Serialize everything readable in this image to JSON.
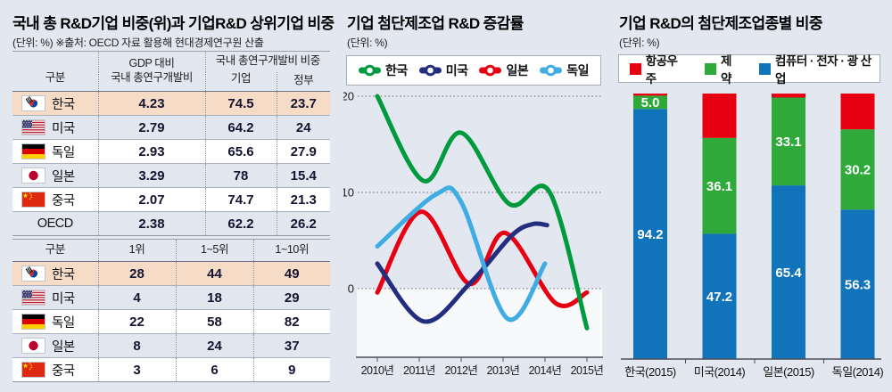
{
  "page": {
    "background": "#e3e7f0",
    "highlight_row_color": "#f6dcc7"
  },
  "panels": {
    "left": {
      "title": "국내 총 R&D기업 비중(위)과 기업R&D 상위기업 비중",
      "subtitle": "(단위: %) ※출처: OECD 자료 활용해 현대경제연구원 산출"
    },
    "middle": {
      "title": "기업 첨단제조업 R&D 증감률",
      "unit": "(단위: %)"
    },
    "right": {
      "title": "기업 R&D의 첨단제조업종별 비중",
      "unit": "(단위: %)"
    }
  },
  "tables": {
    "table1": {
      "header": {
        "col1": "구분",
        "col2": [
          "GDP 대비",
          "국내 총연구개발비"
        ],
        "group": "국내 총연구개발비 비중",
        "sub": [
          "기업",
          "정부"
        ]
      },
      "rows": [
        {
          "flag": "kr",
          "name": "한국",
          "values": [
            "4.23",
            "74.5",
            "23.7"
          ],
          "highlight": true
        },
        {
          "flag": "us",
          "name": "미국",
          "values": [
            "2.79",
            "64.2",
            "24"
          ],
          "highlight": false
        },
        {
          "flag": "de",
          "name": "독일",
          "values": [
            "2.93",
            "65.6",
            "27.9"
          ],
          "highlight": false
        },
        {
          "flag": "jp",
          "name": "일본",
          "values": [
            "3.29",
            "78",
            "15.4"
          ],
          "highlight": false
        },
        {
          "flag": "cn",
          "name": "중국",
          "values": [
            "2.07",
            "74.7",
            "21.3"
          ],
          "highlight": false
        },
        {
          "flag": null,
          "name": "OECD",
          "values": [
            "2.38",
            "62.2",
            "26.2"
          ],
          "highlight": false
        }
      ]
    },
    "table2": {
      "header": {
        "cols": [
          "구분",
          "1위",
          "1~5위",
          "1~10위"
        ]
      },
      "rows": [
        {
          "flag": "kr",
          "name": "한국",
          "values": [
            "28",
            "44",
            "49"
          ],
          "highlight": true
        },
        {
          "flag": "us",
          "name": "미국",
          "values": [
            "4",
            "18",
            "29"
          ],
          "highlight": false
        },
        {
          "flag": "de",
          "name": "독일",
          "values": [
            "22",
            "58",
            "82"
          ],
          "highlight": false
        },
        {
          "flag": "jp",
          "name": "일본",
          "values": [
            "8",
            "24",
            "37"
          ],
          "highlight": false
        },
        {
          "flag": "cn",
          "name": "중국",
          "values": [
            "3",
            "6",
            "9"
          ],
          "highlight": false
        }
      ]
    }
  },
  "chart_data": [
    {
      "id": "line-chart",
      "type": "line",
      "title": "기업 첨단제조업 R&D 증감률",
      "ylabel": "%",
      "x_ticks": [
        "2010년",
        "2011년",
        "2012년",
        "2013년",
        "2014년",
        "2015년"
      ],
      "x_range": [
        2010,
        2015
      ],
      "y_gridlines": [
        0,
        10,
        20
      ],
      "ylim": [
        -7,
        21
      ],
      "grid_style": "dotted",
      "legend_position": "top",
      "series": [
        {
          "name": "한국",
          "color": "#009a3e",
          "points": [
            [
              2010,
              20
            ],
            [
              2011.1,
              11.2
            ],
            [
              2012,
              16.2
            ],
            [
              2013.15,
              8.8
            ],
            [
              2014.1,
              10.1
            ],
            [
              2015,
              -4.1
            ]
          ]
        },
        {
          "name": "미국",
          "color": "#232e7f",
          "points": [
            [
              2010,
              2.6
            ],
            [
              2011.1,
              -3.4
            ],
            [
              2012.2,
              0.5
            ],
            [
              2013.2,
              5.5
            ],
            [
              2013.7,
              6.7
            ],
            [
              2014.05,
              6.6
            ]
          ]
        },
        {
          "name": "일본",
          "color": "#e60012",
          "points": [
            [
              2010,
              -0.4
            ],
            [
              2011.05,
              8.0
            ],
            [
              2012.2,
              0.5
            ],
            [
              2013.05,
              5.8
            ],
            [
              2014.25,
              -1.5
            ],
            [
              2015,
              -0.4
            ]
          ]
        },
        {
          "name": "독일",
          "color": "#3fade4",
          "points": [
            [
              2010,
              4.4
            ],
            [
              2011.4,
              9.8
            ],
            [
              2012,
              9.0
            ],
            [
              2013.1,
              -3.1
            ],
            [
              2014,
              2.6
            ]
          ]
        }
      ],
      "draw_order": [
        "일본",
        "미국",
        "독일",
        "한국"
      ]
    },
    {
      "id": "stacked-bar-chart",
      "type": "bar",
      "stacked": true,
      "title": "기업 R&D의 첨단제조업종별 비중",
      "ylabel": "%",
      "ylim": [
        0,
        100
      ],
      "categories": [
        "한국(2015)",
        "미국(2014)",
        "일본(2015)",
        "독일(2014)"
      ],
      "legend": [
        {
          "name": "항공우주",
          "color": "#e60012"
        },
        {
          "name": "제약",
          "color": "#2faa3a"
        },
        {
          "name": "컴퓨터 · 전자 · 광 산업",
          "color": "#1173b9"
        }
      ],
      "series": [
        {
          "name": "컴퓨터 · 전자 · 광 산업",
          "color": "#1173b9",
          "values": [
            94.2,
            47.2,
            65.4,
            56.3
          ],
          "labels": [
            "94.2",
            "47.2",
            "65.4",
            "56.3"
          ]
        },
        {
          "name": "제약",
          "color": "#2faa3a",
          "values": [
            5.0,
            36.1,
            33.1,
            30.2
          ],
          "labels": [
            "5.0",
            "36.1",
            "33.1",
            "30.2"
          ]
        },
        {
          "name": "항공우주",
          "color": "#e60012",
          "values": [
            0.8,
            16.7,
            1.5,
            13.5
          ],
          "labels": [
            "",
            "",
            "",
            ""
          ]
        }
      ]
    }
  ]
}
